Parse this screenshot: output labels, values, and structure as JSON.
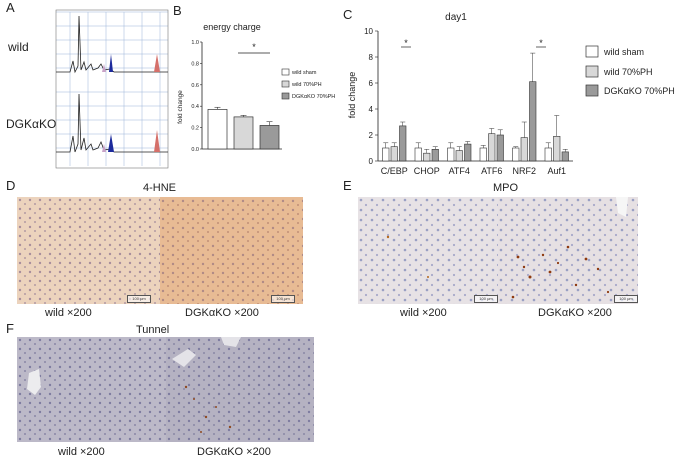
{
  "panels": {
    "A": "A",
    "B": "B",
    "C": "C",
    "D": "D",
    "E": "E",
    "F": "F"
  },
  "panelA": {
    "row_labels": [
      "wild",
      "DGKαKO"
    ]
  },
  "panelB": {
    "title": "energy charge",
    "ylabel": "fold change",
    "sig": "*",
    "legend": [
      "wild sham",
      "wild 70%PH",
      "DGKαKO 70%PH"
    ]
  },
  "panelC": {
    "title": "day1",
    "ylabel": "fold change",
    "legend": [
      "wild sham",
      "wild 70%PH",
      "DGKαKO 70%PH"
    ],
    "sig": [
      "*",
      "*"
    ]
  },
  "panelD": {
    "title": "4-HNE",
    "captions": [
      "wild ×200",
      "DGKαKO ×200"
    ],
    "scalebar": "100 μm"
  },
  "panelE": {
    "title": "MPO",
    "captions": [
      "wild ×200",
      "DGKαKO ×200"
    ],
    "scalebar": "100 μm"
  },
  "panelF": {
    "title": "Tunnel",
    "captions": [
      "wild ×200",
      "DGKαKO ×200"
    ]
  },
  "colors": {
    "sham": "#ffffff",
    "ph": "#d8d8d8",
    "ko": "#9a9a9a",
    "hne_wild": "#e9c9ae",
    "hne_ko": "#e6b890",
    "mpo": "#e3dde2",
    "tunnel": "#b9b6c6",
    "peak_blue": "#1c2a9c",
    "peak_red": "#d5706a"
  },
  "chart_data": [
    {
      "type": "bar",
      "title": "energy charge",
      "xlabel": "",
      "ylabel": "fold change",
      "ylim": [
        0,
        1.0
      ],
      "yticks": [
        "0.0",
        "0.2",
        "0.4",
        "0.6",
        "0.8",
        "1.0"
      ],
      "categories": [
        "wild sham",
        "wild 70%PH",
        "DGKαKO 70%PH"
      ],
      "values": [
        0.37,
        0.3,
        0.22
      ],
      "errors": [
        0.02,
        0.015,
        0.035
      ]
    },
    {
      "type": "bar",
      "title": "day1",
      "xlabel": "",
      "ylabel": "fold change",
      "ylim": [
        0,
        10
      ],
      "yticks": [
        "0",
        "2",
        "4",
        "6",
        "8",
        "10"
      ],
      "categories": [
        "C/EBP",
        "CHOP",
        "ATF4",
        "ATF6",
        "NRF2",
        "Auf1"
      ],
      "series": [
        {
          "name": "wild sham",
          "values": [
            1.0,
            1.0,
            1.0,
            1.0,
            1.0,
            1.0
          ],
          "errors": [
            0.4,
            0.4,
            0.4,
            0.2,
            0.1,
            0.4
          ]
        },
        {
          "name": "wild 70%PH",
          "values": [
            1.1,
            0.6,
            0.8,
            2.1,
            1.8,
            1.9
          ],
          "errors": [
            0.3,
            0.3,
            0.3,
            0.4,
            1.2,
            1.6
          ]
        },
        {
          "name": "DGKαKO 70%PH",
          "values": [
            2.7,
            0.9,
            1.3,
            2.0,
            6.1,
            0.7
          ],
          "errors": [
            0.3,
            0.2,
            0.2,
            0.4,
            2.2,
            0.2
          ]
        }
      ]
    }
  ]
}
